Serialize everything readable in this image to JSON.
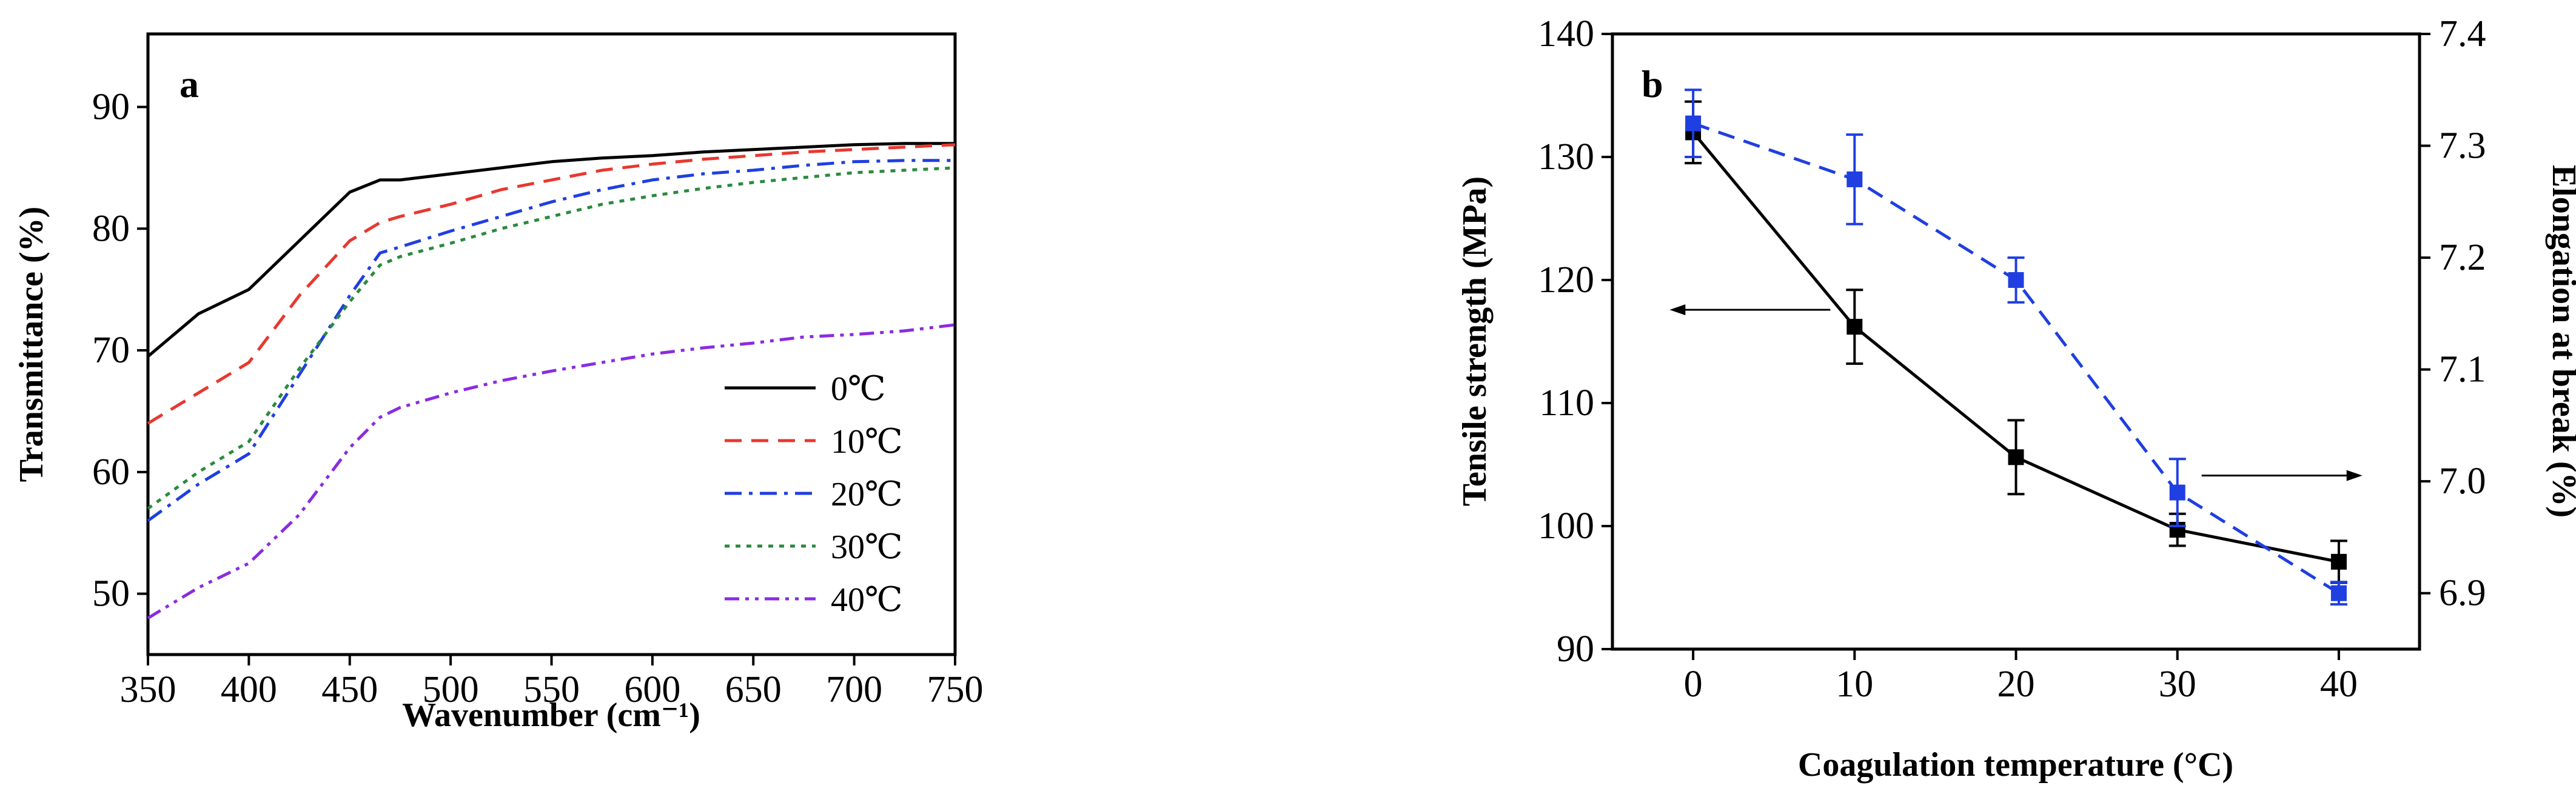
{
  "chart_data": [
    {
      "panel": "a",
      "type": "line",
      "xlabel": "Wavenumber (cm⁻¹)",
      "ylabel": "Transmittance (%)",
      "xlim": [
        350,
        750
      ],
      "ylim": [
        45,
        96
      ],
      "xticks": [
        "350",
        "400",
        "450",
        "500",
        "550",
        "600",
        "650",
        "700",
        "750"
      ],
      "yticks": [
        "50",
        "60",
        "70",
        "80",
        "90"
      ],
      "legend_position": "bottom-right",
      "x": [
        350,
        375,
        400,
        425,
        450,
        465,
        475,
        500,
        525,
        550,
        575,
        600,
        625,
        650,
        675,
        700,
        725,
        750
      ],
      "series": [
        {
          "name": "0℃",
          "color": "#000000",
          "dash": "solid",
          "values": [
            69.5,
            73,
            75,
            79,
            83,
            84,
            84,
            84.5,
            85,
            85.5,
            85.8,
            86.0,
            86.3,
            86.5,
            86.7,
            86.9,
            87.0,
            87.0
          ]
        },
        {
          "name": "10℃",
          "color": "#e8382f",
          "dash": "dashed",
          "values": [
            64,
            66.5,
            69,
            74.5,
            79,
            80.5,
            81,
            82,
            83.2,
            84,
            84.8,
            85.3,
            85.7,
            86,
            86.3,
            86.5,
            86.7,
            86.9
          ]
        },
        {
          "name": "20℃",
          "color": "#1f3fe0",
          "dash": "dashdot",
          "values": [
            56,
            59,
            61.5,
            68,
            74.5,
            78,
            78.5,
            79.8,
            81,
            82.2,
            83.2,
            84,
            84.5,
            84.8,
            85.2,
            85.5,
            85.6,
            85.6
          ]
        },
        {
          "name": "30℃",
          "color": "#2b8a3e",
          "dash": "dotted",
          "values": [
            57,
            60,
            62.5,
            68.5,
            74,
            77,
            77.7,
            78.8,
            80,
            81,
            82,
            82.7,
            83.3,
            83.8,
            84.2,
            84.6,
            84.8,
            85.0
          ]
        },
        {
          "name": "40℃",
          "color": "#8a2be2",
          "dash": "dashdotdot",
          "values": [
            48,
            50.5,
            52.5,
            56.5,
            62,
            64.5,
            65.3,
            66.5,
            67.5,
            68.3,
            69.0,
            69.7,
            70.2,
            70.6,
            71.1,
            71.3,
            71.6,
            72.1
          ]
        }
      ]
    },
    {
      "panel": "b",
      "type": "line",
      "xlabel": "Coagulation temperature (°C)",
      "ylabel": "Tensile strength (MPa)",
      "ylabel_right": "Elongation at break (%)",
      "xlim": [
        -5,
        45
      ],
      "ylim": [
        90,
        140
      ],
      "ylim_right": [
        6.85,
        7.4
      ],
      "xticks": [
        "0",
        "10",
        "20",
        "30",
        "40"
      ],
      "yticks": [
        "90",
        "100",
        "110",
        "120",
        "130",
        "140"
      ],
      "yticks_right": [
        "6.9",
        "7.0",
        "7.1",
        "7.2",
        "7.3",
        "7.4"
      ],
      "x": [
        0,
        10,
        20,
        30,
        40
      ],
      "series": [
        {
          "name": "",
          "axis": "left",
          "color": "#000000",
          "dash": "solid",
          "values": [
            132,
            116.2,
            105.6,
            99.7,
            97.1
          ],
          "errors": [
            2.5,
            3.0,
            3.0,
            1.3,
            1.7
          ]
        },
        {
          "name": "",
          "axis": "right",
          "color": "#1f3fe0",
          "dash": "dashed",
          "values": [
            7.32,
            7.27,
            7.18,
            6.99,
            6.9
          ],
          "errors": [
            0.03,
            0.04,
            0.02,
            0.03,
            0.01
          ]
        }
      ],
      "annotations": [
        {
          "type": "arrow",
          "direction": "left",
          "at": {
            "x": 10,
            "y": 116.2
          }
        },
        {
          "type": "arrow",
          "direction": "right",
          "at": {
            "x": 30,
            "y": 6.99
          }
        }
      ]
    }
  ]
}
